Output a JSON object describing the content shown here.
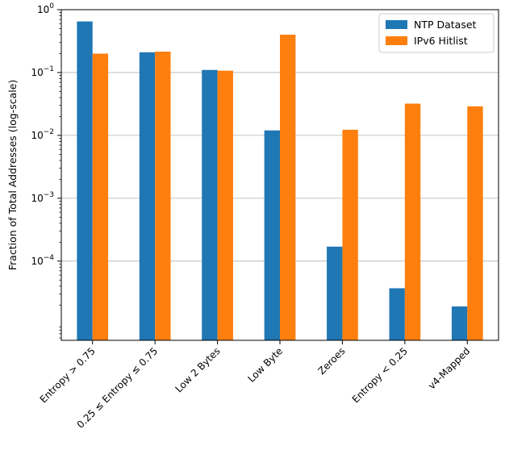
{
  "chart_data": {
    "type": "bar",
    "title": "",
    "xlabel": "",
    "ylabel": "Fraction of Total Addresses (log-scale)",
    "yscale": "log",
    "ylim": [
      5.5e-06,
      1.0
    ],
    "yticks": [
      {
        "base": "10",
        "exp": "0",
        "value": 1
      },
      {
        "base": "10",
        "exp": "−1",
        "value": 0.1
      },
      {
        "base": "10",
        "exp": "−2",
        "value": 0.01
      },
      {
        "base": "10",
        "exp": "−3",
        "value": 0.001
      },
      {
        "base": "10",
        "exp": "−4",
        "value": 0.0001
      }
    ],
    "grid": "horizontal",
    "legend_position": "top-right",
    "categories": [
      "Entropy  >  0.75",
      "0.25 ≤ Entropy ≤ 0.75",
      "Low 2 Bytes",
      "Low Byte",
      "Zeroes",
      "Entropy  <  0.25",
      "v4-Mapped"
    ],
    "series": [
      {
        "name": "NTP Dataset",
        "color": "#1f77b4",
        "values": [
          0.65,
          0.21,
          0.11,
          0.012,
          0.00017,
          3.7e-05,
          1.9e-05
        ]
      },
      {
        "name": "IPv6 Hitlist",
        "color": "#ff7f0e",
        "values": [
          0.2,
          0.215,
          0.107,
          0.4,
          0.0123,
          0.032,
          0.029
        ]
      }
    ]
  }
}
